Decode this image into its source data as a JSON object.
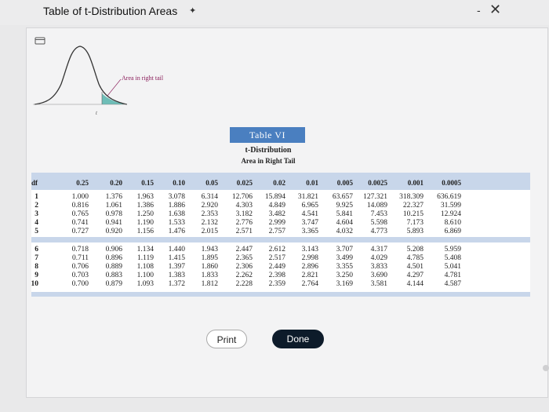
{
  "window": {
    "title": "Table of t-Distribution Areas",
    "minimize_glyph": "-",
    "close_glyph": "✕"
  },
  "figure": {
    "area_label": "Area in right tail",
    "t_axis_label": "t"
  },
  "table": {
    "name": "Table VI",
    "subtitle": "t-Distribution",
    "caption": "Area in Right Tail",
    "df_header": "df",
    "columns": [
      "0.25",
      "0.20",
      "0.15",
      "0.10",
      "0.05",
      "0.025",
      "0.02",
      "0.01",
      "0.005",
      "0.0025",
      "0.001",
      "0.0005"
    ],
    "rows": [
      {
        "df": "1",
        "values": [
          "1.000",
          "1.376",
          "1.963",
          "3.078",
          "6.314",
          "12.706",
          "15.894",
          "31.821",
          "63.657",
          "127.321",
          "318.309",
          "636.619"
        ]
      },
      {
        "df": "2",
        "values": [
          "0.816",
          "1.061",
          "1.386",
          "1.886",
          "2.920",
          "4.303",
          "4.849",
          "6.965",
          "9.925",
          "14.089",
          "22.327",
          "31.599"
        ]
      },
      {
        "df": "3",
        "values": [
          "0.765",
          "0.978",
          "1.250",
          "1.638",
          "2.353",
          "3.182",
          "3.482",
          "4.541",
          "5.841",
          "7.453",
          "10.215",
          "12.924"
        ]
      },
      {
        "df": "4",
        "values": [
          "0.741",
          "0.941",
          "1.190",
          "1.533",
          "2.132",
          "2.776",
          "2.999",
          "3.747",
          "4.604",
          "5.598",
          "7.173",
          "8.610"
        ]
      },
      {
        "df": "5",
        "values": [
          "0.727",
          "0.920",
          "1.156",
          "1.476",
          "2.015",
          "2.571",
          "2.757",
          "3.365",
          "4.032",
          "4.773",
          "5.893",
          "6.869"
        ]
      },
      {
        "df": "6",
        "values": [
          "0.718",
          "0.906",
          "1.134",
          "1.440",
          "1.943",
          "2.447",
          "2.612",
          "3.143",
          "3.707",
          "4.317",
          "5.208",
          "5.959"
        ]
      },
      {
        "df": "7",
        "values": [
          "0.711",
          "0.896",
          "1.119",
          "1.415",
          "1.895",
          "2.365",
          "2.517",
          "2.998",
          "3.499",
          "4.029",
          "4.785",
          "5.408"
        ]
      },
      {
        "df": "8",
        "values": [
          "0.706",
          "0.889",
          "1.108",
          "1.397",
          "1.860",
          "2.306",
          "2.449",
          "2.896",
          "3.355",
          "3.833",
          "4.501",
          "5.041"
        ]
      },
      {
        "df": "9",
        "values": [
          "0.703",
          "0.883",
          "1.100",
          "1.383",
          "1.833",
          "2.262",
          "2.398",
          "2.821",
          "3.250",
          "3.690",
          "4.297",
          "4.781"
        ]
      },
      {
        "df": "10",
        "values": [
          "0.700",
          "0.879",
          "1.093",
          "1.372",
          "1.812",
          "2.228",
          "2.359",
          "2.764",
          "3.169",
          "3.581",
          "4.144",
          "4.587"
        ]
      }
    ]
  },
  "buttons": {
    "print_label": "Print",
    "done_label": "Done"
  },
  "colors": {
    "table_header_bg": "#4a7fc0",
    "table_band_bg": "#c8d6ea",
    "area_label": "#8a1d5a",
    "done_button_bg": "#0d1b2a"
  }
}
